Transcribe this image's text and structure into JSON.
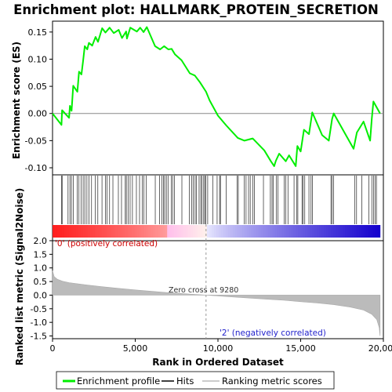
{
  "title": "Enrichment plot: HALLMARK_PROTEIN_SECRETION",
  "colors": {
    "es_line": "#00ee00",
    "hit": "#000000",
    "metric_fill": "#bbbbbb",
    "positive_label": "#cc0000",
    "negative_label": "#2222cc",
    "zero_line": "#888888"
  },
  "chart_data": {
    "type": "line",
    "top_panel": {
      "ylabel": "Enrichment score (ES)",
      "ylim": [
        -0.113,
        0.17
      ],
      "yticks": [
        -0.1,
        -0.05,
        0.0,
        0.05,
        0.1,
        0.15
      ],
      "ytick_labels": [
        "-0.10",
        "-0.05",
        "0.00",
        "0.05",
        "0.10",
        "0.15"
      ],
      "series_name": "Enrichment profile",
      "es_points": [
        [
          0,
          0.0
        ],
        [
          540,
          -0.021
        ],
        [
          580,
          0.006
        ],
        [
          1000,
          -0.008
        ],
        [
          1050,
          0.014
        ],
        [
          1150,
          0.005
        ],
        [
          1250,
          0.051
        ],
        [
          1500,
          0.04
        ],
        [
          1600,
          0.077
        ],
        [
          1750,
          0.072
        ],
        [
          1850,
          0.097
        ],
        [
          1950,
          0.124
        ],
        [
          2100,
          0.118
        ],
        [
          2200,
          0.13
        ],
        [
          2400,
          0.125
        ],
        [
          2600,
          0.141
        ],
        [
          2750,
          0.132
        ],
        [
          3000,
          0.157
        ],
        [
          3200,
          0.149
        ],
        [
          3450,
          0.158
        ],
        [
          3700,
          0.148
        ],
        [
          4000,
          0.154
        ],
        [
          4200,
          0.139
        ],
        [
          4450,
          0.151
        ],
        [
          4500,
          0.138
        ],
        [
          4700,
          0.158
        ],
        [
          5100,
          0.151
        ],
        [
          5300,
          0.158
        ],
        [
          5500,
          0.15
        ],
        [
          5700,
          0.159
        ],
        [
          6200,
          0.124
        ],
        [
          6500,
          0.118
        ],
        [
          6750,
          0.124
        ],
        [
          7000,
          0.118
        ],
        [
          7200,
          0.119
        ],
        [
          7400,
          0.109
        ],
        [
          7800,
          0.098
        ],
        [
          8300,
          0.074
        ],
        [
          8600,
          0.07
        ],
        [
          8900,
          0.058
        ],
        [
          9280,
          0.04
        ],
        [
          9500,
          0.024
        ],
        [
          10000,
          -0.004
        ],
        [
          10500,
          -0.022
        ],
        [
          11200,
          -0.045
        ],
        [
          11600,
          -0.05
        ],
        [
          12100,
          -0.046
        ],
        [
          12800,
          -0.068
        ],
        [
          13200,
          -0.088
        ],
        [
          13400,
          -0.097
        ],
        [
          13500,
          -0.087
        ],
        [
          13700,
          -0.074
        ],
        [
          14100,
          -0.088
        ],
        [
          14300,
          -0.077
        ],
        [
          14700,
          -0.097
        ],
        [
          14800,
          -0.06
        ],
        [
          15000,
          -0.07
        ],
        [
          15200,
          -0.03
        ],
        [
          15500,
          -0.038
        ],
        [
          15700,
          0.002
        ],
        [
          16300,
          -0.04
        ],
        [
          16700,
          -0.05
        ],
        [
          16900,
          -0.01
        ],
        [
          17000,
          0.0
        ],
        [
          18200,
          -0.065
        ],
        [
          18400,
          -0.035
        ],
        [
          18800,
          -0.015
        ],
        [
          19200,
          -0.05
        ],
        [
          19300,
          -0.01
        ],
        [
          19400,
          0.022
        ],
        [
          19800,
          0.0
        ]
      ]
    },
    "hits": [
      540,
      580,
      940,
      1050,
      1140,
      1250,
      1500,
      1600,
      1720,
      1850,
      1950,
      2080,
      2200,
      2360,
      2580,
      2740,
      2990,
      3200,
      3300,
      3450,
      3650,
      3980,
      4170,
      4400,
      4460,
      4570,
      4690,
      4830,
      5070,
      5260,
      5420,
      5520,
      5660,
      6210,
      6470,
      6600,
      6700,
      6780,
      6880,
      6980,
      7170,
      7260,
      7380,
      7820,
      8270,
      8420,
      8500,
      8620,
      8700,
      8860,
      8960,
      9040,
      9140,
      9200,
      9270,
      9380,
      9700,
      9950,
      10100,
      10150,
      10500,
      11150,
      11230,
      11580,
      11700,
      11850,
      11950,
      12100,
      12200,
      12750,
      13170,
      13270,
      13350,
      13520,
      13620,
      14000,
      14100,
      14230,
      14600,
      14760,
      14830,
      15080,
      15150,
      15250,
      15500,
      15630,
      15720,
      16830,
      16900,
      17000,
      18260,
      18380,
      18700,
      19130,
      19300,
      19400,
      19500,
      19580
    ],
    "bottom_panel": {
      "ylabel": "Ranked list metric (Signal2Noise)",
      "ylim": [
        -1.6,
        2.0
      ],
      "yticks": [
        -1.5,
        -1.0,
        -0.5,
        0.0,
        0.5,
        1.0,
        1.5,
        2.0
      ],
      "ytick_labels": [
        "-1.5",
        "-1.0",
        "-0.5",
        "0.0",
        "0.5",
        "1.0",
        "1.5",
        "2.0"
      ],
      "metric_points": [
        [
          0,
          0.9
        ],
        [
          100,
          0.68
        ],
        [
          300,
          0.58
        ],
        [
          600,
          0.51
        ],
        [
          1000,
          0.46
        ],
        [
          2000,
          0.38
        ],
        [
          3000,
          0.31
        ],
        [
          4000,
          0.25
        ],
        [
          5000,
          0.19
        ],
        [
          6000,
          0.14
        ],
        [
          7000,
          0.09
        ],
        [
          8000,
          0.05
        ],
        [
          9280,
          0.0
        ],
        [
          10000,
          -0.03
        ],
        [
          11000,
          -0.07
        ],
        [
          12000,
          -0.11
        ],
        [
          13000,
          -0.15
        ],
        [
          14000,
          -0.19
        ],
        [
          15000,
          -0.24
        ],
        [
          16000,
          -0.29
        ],
        [
          17000,
          -0.35
        ],
        [
          18000,
          -0.44
        ],
        [
          18800,
          -0.55
        ],
        [
          19300,
          -0.7
        ],
        [
          19600,
          -0.9
        ],
        [
          19750,
          -1.2
        ],
        [
          19800,
          -1.5
        ]
      ]
    },
    "xlabel": "Rank in Ordered Dataset",
    "xlim": [
      0,
      20000
    ],
    "xticks": [
      0,
      5000,
      10000,
      15000,
      20000
    ],
    "xtick_labels": [
      "0",
      "5,000",
      "10,000",
      "15,000",
      "20,000"
    ],
    "total_genes": 19800,
    "zero_cross": 9280,
    "annotations": {
      "zero_cross_label": "Zero cross at 9280",
      "positive_label": "'0' (positively correlated)",
      "negative_label": "'2' (negatively correlated)"
    },
    "legend": {
      "placement": "bottom",
      "items": [
        {
          "label": "Enrichment profile",
          "style": "green-line"
        },
        {
          "label": "Hits",
          "style": "black-line"
        },
        {
          "label": "Ranking metric scores",
          "style": "gray-line"
        }
      ]
    }
  }
}
